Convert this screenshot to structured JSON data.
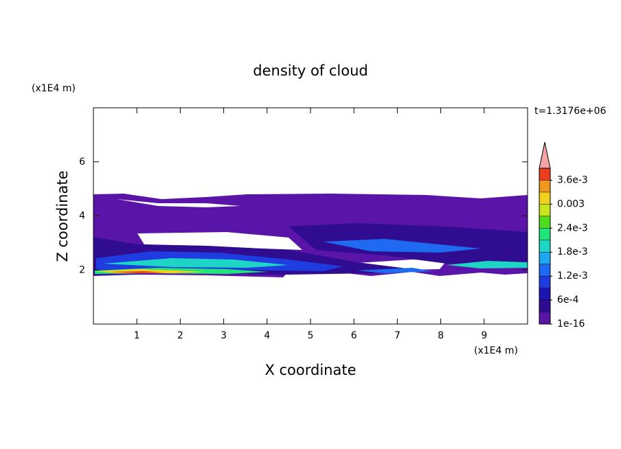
{
  "chart_data": {
    "type": "contour",
    "title": "density of cloud",
    "xlabel": "X coordinate",
    "ylabel": "Z coordinate",
    "x_unit": "(x1E4 m)",
    "y_unit": "(x1E4 m)",
    "annotation": "t=1.3176e+06",
    "xlim": [
      0,
      10
    ],
    "ylim": [
      0,
      8
    ],
    "xticks": [
      1,
      2,
      3,
      4,
      5,
      6,
      7,
      8,
      9
    ],
    "yticks": [
      2,
      4,
      6
    ],
    "colorbar": {
      "clim": [
        1e-16,
        0.0039
      ],
      "ticks": [
        1e-16,
        {
          "value": 0.0006,
          "label": "6e-4"
        },
        {
          "value": 0.0012,
          "label": "1.2e-3"
        },
        {
          "value": 0.0018,
          "label": "1.8e-3"
        },
        {
          "value": 0.0024,
          "label": "2.4e-3"
        },
        0.003,
        {
          "value": 0.0036,
          "label": "3.6e-3"
        }
      ],
      "colors": [
        "#5a14a8",
        "#300c90",
        "#1e14b4",
        "#1e3ce0",
        "#1e6af0",
        "#1ea8f0",
        "#1ed4c4",
        "#1ee67a",
        "#50dc1e",
        "#c8e61e",
        "#f0d21e",
        "#f0961e",
        "#ec3c1e"
      ],
      "extend_color": "#f4a4a4"
    }
  }
}
